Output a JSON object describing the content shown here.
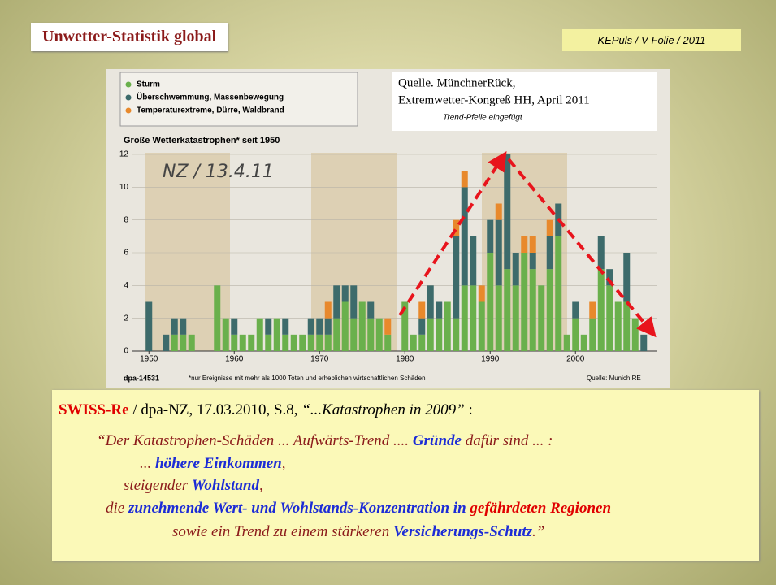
{
  "slide": {
    "title": "Unwetter-Statistik global",
    "tag": "KEPuls / V-Folie / 2011",
    "quote": {
      "line1": [
        "SWISS-Re",
        " / dpa-NZ, 17.03.2010, S.8, ",
        "“...Katastrophen in 2009”",
        " :"
      ],
      "line2": [
        "“Der Katastrophen-Schäden ... Aufwärts-Trend .... ",
        "Gründe",
        " dafür sind ... :"
      ],
      "line3": [
        "... ",
        "höhere Einkommen",
        ","
      ],
      "line4": [
        "steigender ",
        "Wohlstand",
        ","
      ],
      "line5": [
        "die ",
        "zunehmende Wert- und Wohlstands-Konzentration in",
        "gefährdeten Regionen"
      ],
      "line6": [
        "sowie ein Trend zu einem stärkeren ",
        "Versicherungs-Schutz",
        ".”"
      ]
    }
  },
  "chart_data": {
    "type": "bar",
    "stacked": true,
    "title": "Große Wetterkatastrophen* seit 1950",
    "handwritten": "NZ / 13.4.11",
    "source_box": [
      "Quelle. MünchnerRück,",
      "Extremwetter-Kongreß HH, April 2011",
      "Trend-Pfeile eingefügt"
    ],
    "credit": "dpa-14531",
    "note": "*nur Ereignisse mit mehr als 1000 Toten und erheblichen wirtschaftlichen Schäden",
    "source": "Quelle: Munich RE",
    "x": [
      1950,
      1951,
      1952,
      1953,
      1954,
      1955,
      1956,
      1957,
      1958,
      1959,
      1960,
      1961,
      1962,
      1963,
      1964,
      1965,
      1966,
      1967,
      1968,
      1969,
      1970,
      1971,
      1972,
      1973,
      1974,
      1975,
      1976,
      1977,
      1978,
      1979,
      1980,
      1981,
      1982,
      1983,
      1984,
      1985,
      1986,
      1987,
      1988,
      1989,
      1990,
      1991,
      1992,
      1993,
      1994,
      1995,
      1996,
      1997,
      1998,
      1999,
      2000,
      2001,
      2002,
      2003,
      2004,
      2005,
      2006,
      2007,
      2008
    ],
    "series": [
      {
        "name": "Sturm",
        "color": "#6ab04c",
        "values": [
          0,
          0,
          0,
          1,
          1,
          1,
          0,
          0,
          4,
          2,
          1,
          1,
          1,
          2,
          1,
          2,
          1,
          1,
          1,
          1,
          1,
          1,
          2,
          3,
          2,
          3,
          2,
          2,
          1,
          0,
          3,
          1,
          1,
          2,
          2,
          3,
          2,
          4,
          4,
          3,
          6,
          4,
          5,
          4,
          6,
          5,
          4,
          5,
          7,
          1,
          2,
          1,
          2,
          5,
          4,
          3,
          3,
          2,
          0
        ]
      },
      {
        "name": "Überschwemmung, Massenbewegung",
        "color": "#3d6b6b",
        "values": [
          3,
          0,
          1,
          1,
          1,
          0,
          0,
          0,
          0,
          0,
          1,
          0,
          0,
          0,
          1,
          0,
          1,
          0,
          0,
          1,
          1,
          1,
          2,
          1,
          2,
          0,
          1,
          0,
          0,
          0,
          0,
          0,
          1,
          2,
          1,
          0,
          5,
          6,
          3,
          0,
          2,
          4,
          7,
          2,
          0,
          1,
          0,
          2,
          2,
          0,
          1,
          0,
          0,
          2,
          1,
          0,
          3,
          0,
          1
        ]
      },
      {
        "name": "Temperaturextreme, Dürre, Waldbrand",
        "color": "#e8892c",
        "values": [
          0,
          0,
          0,
          0,
          0,
          0,
          0,
          0,
          0,
          0,
          0,
          0,
          0,
          0,
          0,
          0,
          0,
          0,
          0,
          0,
          0,
          1,
          0,
          0,
          0,
          0,
          0,
          0,
          1,
          0,
          0,
          0,
          1,
          0,
          0,
          0,
          1,
          1,
          0,
          1,
          0,
          1,
          0,
          0,
          1,
          1,
          0,
          1,
          0,
          0,
          0,
          0,
          1,
          0,
          0,
          0,
          0,
          0,
          0
        ]
      }
    ],
    "xlim": [
      1949.5,
      2009.5
    ],
    "xticks": [
      1950,
      1960,
      1970,
      1980,
      1990,
      2000
    ],
    "ylim": [
      0,
      12
    ],
    "yticks": [
      0,
      2,
      4,
      6,
      8,
      10,
      12
    ],
    "grid": true,
    "legend": "upper left"
  }
}
